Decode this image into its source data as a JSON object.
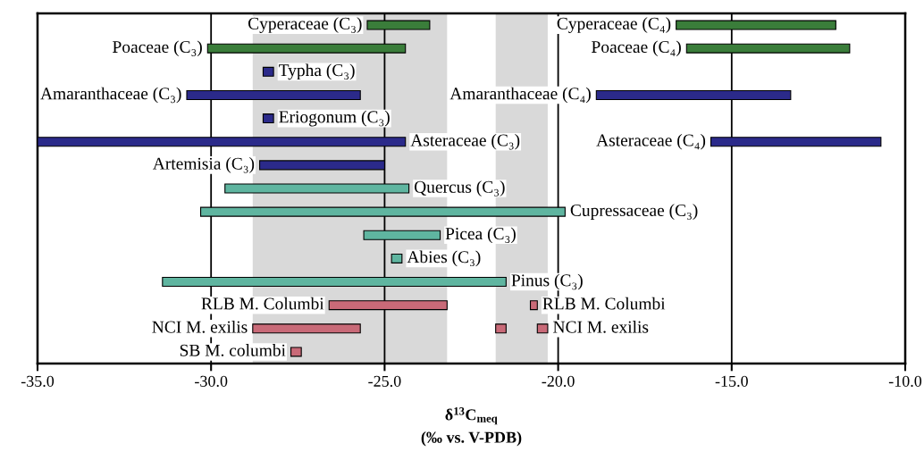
{
  "chart_data": {
    "type": "bar",
    "orientation": "horizontal",
    "xlabel": "δ$^{13}$C$_{meq}$\n(‰ vs. V-PDB)",
    "categories": [
      null,
      null,
      null,
      null,
      null,
      null,
      null,
      null,
      null,
      null,
      null,
      null,
      null,
      null,
      null
    ],
    "xlim": [
      -35,
      -10
    ],
    "xticks": [
      {
        "value": -35,
        "label": "-35.0"
      },
      {
        "value": -30,
        "label": "-30.0"
      },
      {
        "value": -25,
        "label": "-25.0"
      },
      {
        "value": -20,
        "label": "-20.0"
      },
      {
        "value": -15,
        "label": "-15.0"
      },
      {
        "value": -10,
        "label": "-10.0"
      }
    ],
    "tick_labels": "x",
    "grid": "x",
    "bands": [
      {
        "axis": "x",
        "from": -28.8,
        "to": -23.2,
        "color": "#d9d9d9"
      },
      {
        "axis": "x",
        "from": -21.8,
        "to": -20.3,
        "color": "#d9d9d9"
      }
    ],
    "series": [
      {
        "base": [
          -25.5,
          -30.1,
          -28.5,
          -30.7,
          -28.5,
          -35.0,
          -28.6,
          -29.6,
          -30.3,
          -25.6,
          -24.8,
          -31.4,
          -26.6,
          -28.8,
          -27.7
        ],
        "values": [
          1.8,
          5.7,
          0.3,
          5.0,
          0.3,
          10.6,
          3.6,
          5.3,
          10.5,
          2.2,
          0.3,
          9.9,
          3.4,
          3.1,
          0.3
        ],
        "colors": [
          "#3a7d3a",
          "#3a7d3a",
          "#2b2a8a",
          "#2b2a8a",
          "#2b2a8a",
          "#2b2a8a",
          "#2b2a8a",
          "#5fb5a0",
          "#5fb5a0",
          "#5fb5a0",
          "#5fb5a0",
          "#5fb5a0",
          "#c96a78",
          "#c96a78",
          "#c96a78"
        ],
        "value_labels": [
          "Cyperaceae (C₃)",
          "Poaceae (C₃)",
          "Typha (C₃)",
          "Amaranthaceae (C₃)",
          "Eriogonum (C₃)",
          "Asteraceae (C₃)",
          "Artemisia (C₃)",
          "Quercus (C₃)",
          "Cupressaceae (C₃)",
          "Picea (C₃)",
          "Abies (C₃)",
          "Pinus (C₃)",
          "RLB M. Columbi",
          "NCI M. exilis",
          "SB M. columbi"
        ]
      },
      {
        "base": [
          -16.6,
          -16.3,
          null,
          -18.9,
          null,
          -15.6,
          null,
          null,
          null,
          null,
          null,
          null,
          -20.8,
          -21.8,
          null
        ],
        "values": [
          4.6,
          4.7,
          null,
          5.6,
          null,
          4.9,
          null,
          null,
          null,
          null,
          null,
          null,
          0.2,
          0.3,
          null
        ],
        "colors": [
          "#3a7d3a",
          "#3a7d3a",
          null,
          "#2b2a8a",
          null,
          "#2b2a8a",
          null,
          null,
          null,
          null,
          null,
          null,
          "#c96a78",
          "#c96a78",
          null
        ],
        "value_labels": [
          "Cyperaceae (C₄)",
          "Poaceae (C₄)",
          null,
          "Amaranthaceae (C₄)",
          null,
          "Asteraceae (C₄)",
          null,
          null,
          null,
          null,
          null,
          null,
          "RLB M. Columbi",
          null,
          null
        ]
      },
      {
        "base": [
          null,
          null,
          null,
          null,
          null,
          null,
          null,
          null,
          null,
          null,
          null,
          null,
          null,
          -20.6,
          null
        ],
        "values": [
          null,
          null,
          null,
          null,
          null,
          null,
          null,
          null,
          null,
          null,
          null,
          null,
          null,
          0.3,
          null
        ],
        "colors": [
          null,
          null,
          null,
          null,
          null,
          null,
          null,
          null,
          null,
          null,
          null,
          null,
          null,
          "#c96a78",
          null
        ],
        "value_labels": [
          null,
          null,
          null,
          null,
          null,
          null,
          null,
          null,
          null,
          null,
          null,
          null,
          null,
          "NCI M. exilis",
          null
        ]
      }
    ]
  }
}
